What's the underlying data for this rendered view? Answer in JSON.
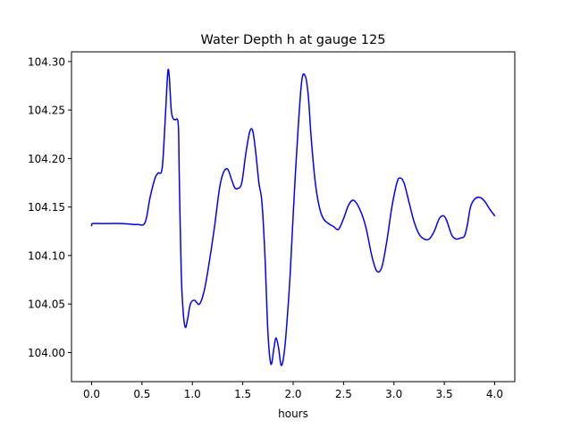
{
  "chart_data": {
    "type": "line",
    "title": "Water Depth h at gauge 125",
    "xlabel": "hours",
    "ylabel": "",
    "xlim": [
      -0.2,
      4.2
    ],
    "ylim": [
      103.97,
      104.31
    ],
    "xticks": [
      0.0,
      0.5,
      1.0,
      1.5,
      2.0,
      2.5,
      3.0,
      3.5,
      4.0
    ],
    "xtick_labels": [
      "0.0",
      "0.5",
      "1.0",
      "1.5",
      "2.0",
      "2.5",
      "3.0",
      "3.5",
      "4.0"
    ],
    "yticks": [
      104.0,
      104.05,
      104.1,
      104.15,
      104.2,
      104.25,
      104.3
    ],
    "ytick_labels": [
      "104.00",
      "104.05",
      "104.10",
      "104.15",
      "104.20",
      "104.25",
      "104.30"
    ],
    "grid": false,
    "series": [
      {
        "color": "#0000ff",
        "x": [
          0.0,
          0.01,
          0.1,
          0.3,
          0.45,
          0.53,
          0.58,
          0.63,
          0.66,
          0.7,
          0.73,
          0.755,
          0.77,
          0.79,
          0.81,
          0.83,
          0.86,
          0.87,
          0.89,
          0.91,
          0.93,
          0.95,
          0.98,
          1.02,
          1.07,
          1.12,
          1.17,
          1.22,
          1.27,
          1.31,
          1.35,
          1.39,
          1.42,
          1.45,
          1.49,
          1.53,
          1.57,
          1.6,
          1.63,
          1.66,
          1.69,
          1.72,
          1.75,
          1.78,
          1.81,
          1.83,
          1.855,
          1.88,
          1.905,
          1.93,
          1.97,
          2.02,
          2.08,
          2.12,
          2.15,
          2.18,
          2.22,
          2.26,
          2.3,
          2.35,
          2.4,
          2.45,
          2.5,
          2.55,
          2.6,
          2.66,
          2.72,
          2.78,
          2.83,
          2.88,
          2.93,
          2.98,
          3.03,
          3.06,
          3.1,
          3.15,
          3.2,
          3.25,
          3.3,
          3.35,
          3.4,
          3.45,
          3.49,
          3.52,
          3.55,
          3.58,
          3.62,
          3.66,
          3.7,
          3.73,
          3.76,
          3.8,
          3.85,
          3.9,
          3.95,
          4.0
        ],
        "y": [
          104.131,
          104.133,
          104.133,
          104.133,
          104.132,
          104.134,
          104.16,
          104.18,
          104.185,
          104.19,
          104.24,
          104.288,
          104.285,
          104.25,
          104.241,
          104.24,
          104.235,
          104.18,
          104.08,
          104.04,
          104.026,
          104.033,
          104.05,
          104.054,
          104.05,
          104.065,
          104.095,
          104.13,
          104.17,
          104.186,
          104.189,
          104.178,
          104.17,
          104.169,
          104.175,
          104.205,
          104.228,
          104.228,
          104.205,
          104.175,
          104.155,
          104.1,
          104.02,
          103.988,
          104.005,
          104.015,
          104.005,
          103.987,
          103.995,
          104.02,
          104.08,
          104.18,
          104.275,
          104.285,
          104.265,
          104.22,
          104.175,
          104.15,
          104.138,
          104.133,
          104.13,
          104.127,
          104.138,
          104.152,
          104.157,
          104.148,
          104.13,
          104.1,
          104.084,
          104.088,
          104.115,
          104.15,
          104.175,
          104.18,
          104.175,
          104.155,
          104.135,
          104.122,
          104.117,
          104.117,
          104.125,
          104.138,
          104.141,
          104.137,
          104.128,
          104.12,
          104.117,
          104.118,
          104.12,
          104.132,
          104.15,
          104.158,
          104.16,
          104.156,
          104.148,
          104.141
        ]
      }
    ]
  }
}
